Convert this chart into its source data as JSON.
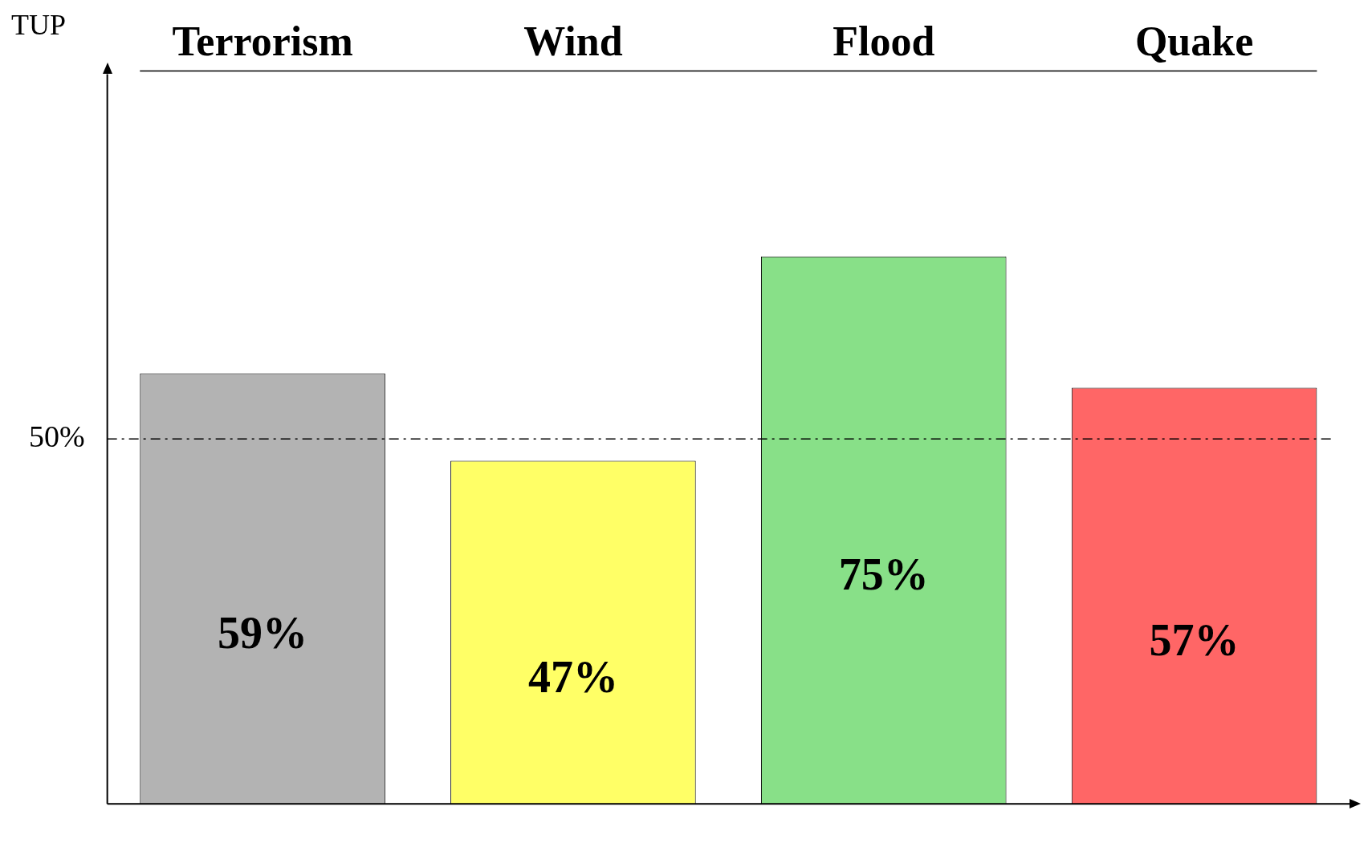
{
  "chart_data": {
    "type": "bar",
    "ylabel": "TUP",
    "categories": [
      "Terrorism",
      "Wind",
      "Flood",
      "Quake"
    ],
    "values": [
      59,
      47,
      75,
      57
    ],
    "colors": [
      "#b3b3b3",
      "#ffff66",
      "#88e088",
      "#ff6666"
    ],
    "ylim": [
      0,
      100
    ],
    "yticks": [
      {
        "value": 50,
        "label": "50%"
      }
    ],
    "ref_lines": [
      {
        "axis": "y",
        "value": 50,
        "color": "#000000",
        "line_style": "dashdot"
      }
    ],
    "value_labels": [
      "59%",
      "47%",
      "75%",
      "57%"
    ],
    "grid": false,
    "legend": false
  }
}
